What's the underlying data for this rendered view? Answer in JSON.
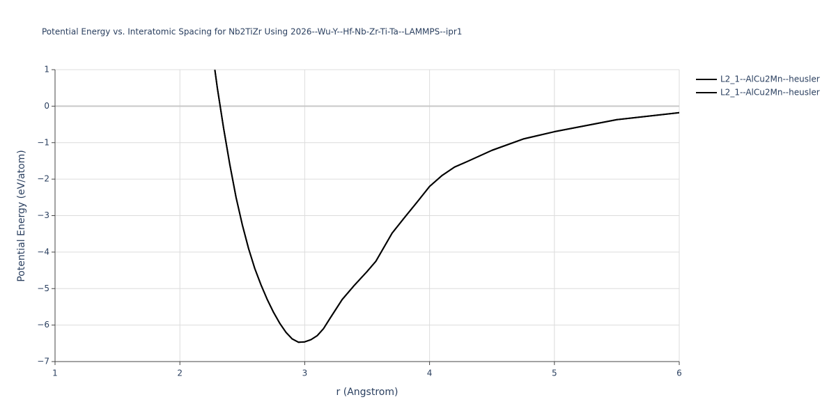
{
  "chart_data": {
    "type": "line",
    "title": "Potential Energy vs. Interatomic Spacing for Nb2TiZr Using 2026--Wu-Y--Hf-Nb-Zr-Ti-Ta--LAMMPS--ipr1",
    "x_label": "r (Angstrom)",
    "y_label": "Potential Energy (eV/atom)",
    "xlim": [
      1,
      6
    ],
    "ylim": [
      -7,
      1
    ],
    "xticks": [
      1,
      2,
      3,
      4,
      5,
      6
    ],
    "yticks": [
      1,
      0,
      {
        "value": -1,
        "label": "−1"
      },
      {
        "value": -2,
        "label": "−2"
      },
      {
        "value": -3,
        "label": "−3"
      },
      {
        "value": -4,
        "label": "−4"
      },
      {
        "value": -5,
        "label": "−5"
      },
      {
        "value": -6,
        "label": "−6"
      },
      {
        "value": -7,
        "label": "−7"
      }
    ],
    "grid": true,
    "legend": "top-right",
    "x": [
      2.28,
      2.3,
      2.35,
      2.4,
      2.45,
      2.5,
      2.55,
      2.6,
      2.65,
      2.7,
      2.75,
      2.8,
      2.85,
      2.9,
      2.95,
      3.0,
      3.05,
      3.1,
      3.15,
      3.2,
      3.3,
      3.4,
      3.5,
      3.57,
      3.7,
      3.8,
      3.9,
      4.0,
      4.1,
      4.2,
      4.3,
      4.5,
      4.75,
      5.0,
      5.5,
      6.0
    ],
    "series": [
      {
        "name": "L2_1--AlCu2Mn--heusler",
        "color": "#000000",
        "values": [
          1.0,
          0.5,
          -0.6,
          -1.6,
          -2.5,
          -3.25,
          -3.9,
          -4.45,
          -4.9,
          -5.3,
          -5.65,
          -5.95,
          -6.2,
          -6.38,
          -6.47,
          -6.46,
          -6.4,
          -6.29,
          -6.1,
          -5.83,
          -5.3,
          -4.9,
          -4.53,
          -4.25,
          -3.48,
          -3.05,
          -2.63,
          -2.2,
          -1.9,
          -1.67,
          -1.52,
          -1.21,
          -0.9,
          -0.7,
          -0.37,
          -0.18
        ]
      },
      {
        "name": "L2_1--AlCu2Mn--heusler",
        "color": "#000000",
        "values": [
          1.0,
          0.5,
          -0.6,
          -1.6,
          -2.5,
          -3.25,
          -3.9,
          -4.45,
          -4.9,
          -5.3,
          -5.65,
          -5.95,
          -6.2,
          -6.38,
          -6.47,
          -6.46,
          -6.4,
          -6.29,
          -6.1,
          -5.83,
          -5.3,
          -4.9,
          -4.53,
          -4.25,
          -3.48,
          -3.05,
          -2.63,
          -2.2,
          -1.9,
          -1.67,
          -1.52,
          -1.21,
          -0.9,
          -0.7,
          -0.37,
          -0.18
        ]
      }
    ]
  }
}
